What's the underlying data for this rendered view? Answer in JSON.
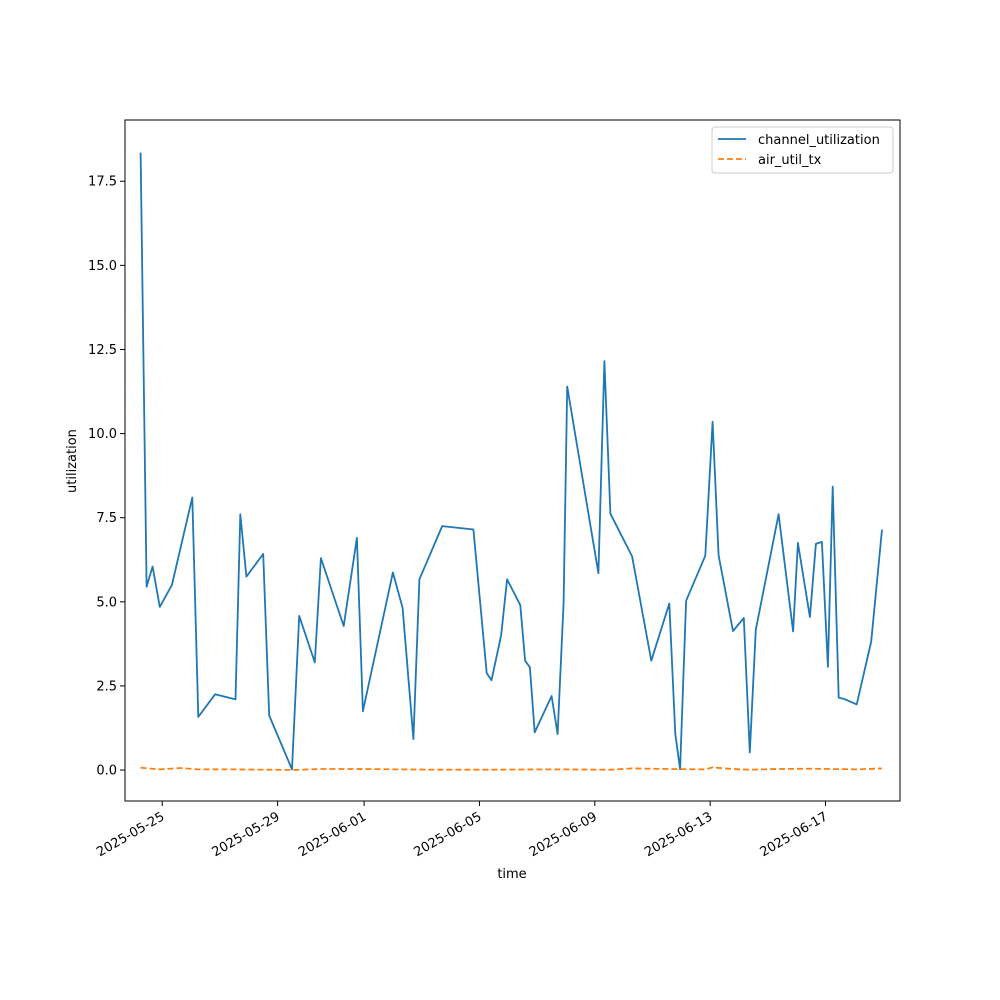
{
  "chart_data": {
    "type": "line",
    "xlabel": "time",
    "ylabel": "utilization",
    "xlim": [
      "2025-05-23T17:00",
      "2025-06-19T14:00"
    ],
    "ylim": [
      -0.92,
      19.32
    ],
    "grid": false,
    "legend_position": "top-right",
    "x_ticks": [
      "2025-05-25",
      "2025-05-29",
      "2025-06-01",
      "2025-06-05",
      "2025-06-09",
      "2025-06-13",
      "2025-06-17"
    ],
    "y_ticks": [
      "0.0",
      "2.5",
      "5.0",
      "7.5",
      "10.0",
      "12.5",
      "15.0",
      "17.5"
    ],
    "colors": {
      "channel_utilization": "#1f77b4",
      "air_util_tx": "#ff7f0e"
    },
    "series": [
      {
        "name": "channel_utilization",
        "style": "solid",
        "points": [
          [
            "2025-05-24T06:00",
            18.35
          ],
          [
            "2025-05-24T11:00",
            5.45
          ],
          [
            "2025-05-24T16:00",
            6.05
          ],
          [
            "2025-05-24T22:00",
            4.85
          ],
          [
            "2025-05-25T08:00",
            5.5
          ],
          [
            "2025-05-26T01:00",
            8.1
          ],
          [
            "2025-05-26T06:00",
            1.58
          ],
          [
            "2025-05-26T20:00",
            2.25
          ],
          [
            "2025-05-27T13:00",
            2.1
          ],
          [
            "2025-05-27T17:00",
            7.6
          ],
          [
            "2025-05-27T22:00",
            5.75
          ],
          [
            "2025-05-28T12:00",
            6.42
          ],
          [
            "2025-05-28T17:00",
            1.62
          ],
          [
            "2025-05-29T12:00",
            0.02
          ],
          [
            "2025-05-29T18:00",
            4.58
          ],
          [
            "2025-05-30T07:00",
            3.2
          ],
          [
            "2025-05-30T12:00",
            6.3
          ],
          [
            "2025-05-31T07:00",
            4.28
          ],
          [
            "2025-05-31T18:00",
            6.9
          ],
          [
            "2025-05-31T23:00",
            1.75
          ],
          [
            "2025-06-02T00:00",
            5.87
          ],
          [
            "2025-06-02T08:00",
            4.82
          ],
          [
            "2025-06-02T17:00",
            0.92
          ],
          [
            "2025-06-02T22:00",
            5.67
          ],
          [
            "2025-06-03T17:00",
            7.25
          ],
          [
            "2025-06-04T19:00",
            7.15
          ],
          [
            "2025-06-05T06:00",
            2.88
          ],
          [
            "2025-06-05T10:00",
            2.67
          ],
          [
            "2025-06-05T18:00",
            4.0
          ],
          [
            "2025-06-05T23:00",
            5.67
          ],
          [
            "2025-06-06T10:00",
            4.9
          ],
          [
            "2025-06-06T14:00",
            3.25
          ],
          [
            "2025-06-06T18:00",
            3.05
          ],
          [
            "2025-06-06T22:00",
            1.12
          ],
          [
            "2025-06-07T12:00",
            2.2
          ],
          [
            "2025-06-07T17:00",
            1.07
          ],
          [
            "2025-06-07T22:00",
            4.97
          ],
          [
            "2025-06-08T01:00",
            11.4
          ],
          [
            "2025-06-09T03:00",
            5.85
          ],
          [
            "2025-06-09T08:00",
            12.15
          ],
          [
            "2025-06-09T13:00",
            7.62
          ],
          [
            "2025-06-10T07:00",
            6.35
          ],
          [
            "2025-06-10T23:00",
            3.25
          ],
          [
            "2025-06-11T14:00",
            4.95
          ],
          [
            "2025-06-11T19:00",
            1.07
          ],
          [
            "2025-06-11T23:00",
            0.02
          ],
          [
            "2025-06-12T04:00",
            5.03
          ],
          [
            "2025-06-12T20:00",
            6.37
          ],
          [
            "2025-06-13T02:00",
            10.35
          ],
          [
            "2025-06-13T07:00",
            6.38
          ],
          [
            "2025-06-13T19:00",
            4.13
          ],
          [
            "2025-06-14T04:00",
            4.52
          ],
          [
            "2025-06-14T09:00",
            0.52
          ],
          [
            "2025-06-14T14:00",
            4.17
          ],
          [
            "2025-06-15T09:00",
            7.6
          ],
          [
            "2025-06-15T21:00",
            4.12
          ],
          [
            "2025-06-16T01:00",
            6.75
          ],
          [
            "2025-06-16T11:00",
            4.55
          ],
          [
            "2025-06-16T16:00",
            6.72
          ],
          [
            "2025-06-16T21:00",
            6.78
          ],
          [
            "2025-06-17T02:00",
            3.07
          ],
          [
            "2025-06-17T06:00",
            8.42
          ],
          [
            "2025-06-17T11:00",
            2.15
          ],
          [
            "2025-06-17T15:00",
            2.12
          ],
          [
            "2025-06-18T02:00",
            1.95
          ],
          [
            "2025-06-18T14:00",
            3.82
          ],
          [
            "2025-06-18T23:00",
            7.15
          ]
        ]
      },
      {
        "name": "air_util_tx",
        "style": "dashed",
        "points": [
          [
            "2025-05-24T06:00",
            0.07
          ],
          [
            "2025-05-24T22:00",
            0.02
          ],
          [
            "2025-05-25T15:00",
            0.06
          ],
          [
            "2025-05-26T06:00",
            0.02
          ],
          [
            "2025-05-27T13:00",
            0.02
          ],
          [
            "2025-05-28T17:00",
            0.01
          ],
          [
            "2025-05-29T12:00",
            0.0
          ],
          [
            "2025-05-30T12:00",
            0.03
          ],
          [
            "2025-05-31T18:00",
            0.03
          ],
          [
            "2025-06-02T08:00",
            0.02
          ],
          [
            "2025-06-03T17:00",
            0.01
          ],
          [
            "2025-06-05T10:00",
            0.01
          ],
          [
            "2025-06-06T22:00",
            0.02
          ],
          [
            "2025-06-08T01:00",
            0.02
          ],
          [
            "2025-06-09T13:00",
            0.01
          ],
          [
            "2025-06-10T07:00",
            0.05
          ],
          [
            "2025-06-11T14:00",
            0.03
          ],
          [
            "2025-06-12T20:00",
            0.02
          ],
          [
            "2025-06-13T02:00",
            0.08
          ],
          [
            "2025-06-13T19:00",
            0.03
          ],
          [
            "2025-06-14T09:00",
            0.01
          ],
          [
            "2025-06-15T09:00",
            0.03
          ],
          [
            "2025-06-16T11:00",
            0.04
          ],
          [
            "2025-06-17T06:00",
            0.03
          ],
          [
            "2025-06-18T02:00",
            0.02
          ],
          [
            "2025-06-18T23:00",
            0.05
          ]
        ]
      }
    ]
  }
}
